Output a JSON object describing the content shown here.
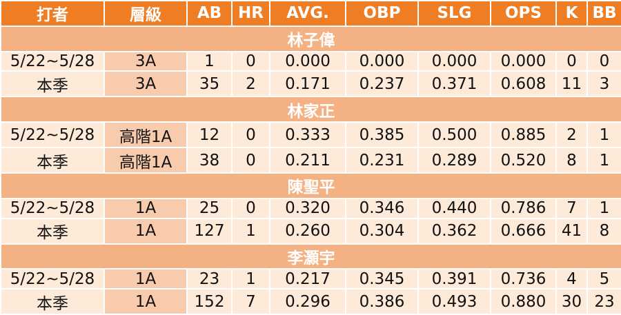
{
  "table": {
    "header": [
      "打者",
      "層級",
      "AB",
      "HR",
      "AVG.",
      "OBP",
      "SLG",
      "OPS",
      "K",
      "BB"
    ],
    "players": [
      {
        "name": "林子偉",
        "rows": [
          [
            "5/22~5/28",
            "3A",
            "1",
            "0",
            "0.000",
            "0.000",
            "0.000",
            "0.000",
            "0",
            "0"
          ],
          [
            "本季",
            "3A",
            "35",
            "2",
            "0.171",
            "0.237",
            "0.371",
            "0.608",
            "11",
            "3"
          ]
        ]
      },
      {
        "name": "林家正",
        "rows": [
          [
            "5/22~5/28",
            "高階1A",
            "12",
            "0",
            "0.333",
            "0.385",
            "0.500",
            "0.885",
            "2",
            "1"
          ],
          [
            "本季",
            "高階1A",
            "38",
            "0",
            "0.211",
            "0.231",
            "0.289",
            "0.520",
            "8",
            "1"
          ]
        ]
      },
      {
        "name": "陳聖平",
        "rows": [
          [
            "5/22~5/28",
            "1A",
            "25",
            "0",
            "0.320",
            "0.346",
            "0.440",
            "0.786",
            "7",
            "1"
          ],
          [
            "本季",
            "1A",
            "127",
            "1",
            "0.260",
            "0.304",
            "0.362",
            "0.666",
            "41",
            "8"
          ]
        ]
      },
      {
        "name": "李灝宇",
        "rows": [
          [
            "5/22~5/28",
            "1A",
            "23",
            "1",
            "0.217",
            "0.345",
            "0.391",
            "0.736",
            "4",
            "5"
          ],
          [
            "本季",
            "1A",
            "152",
            "7",
            "0.296",
            "0.386",
            "0.493",
            "0.880",
            "30",
            "23"
          ]
        ]
      }
    ]
  }
}
